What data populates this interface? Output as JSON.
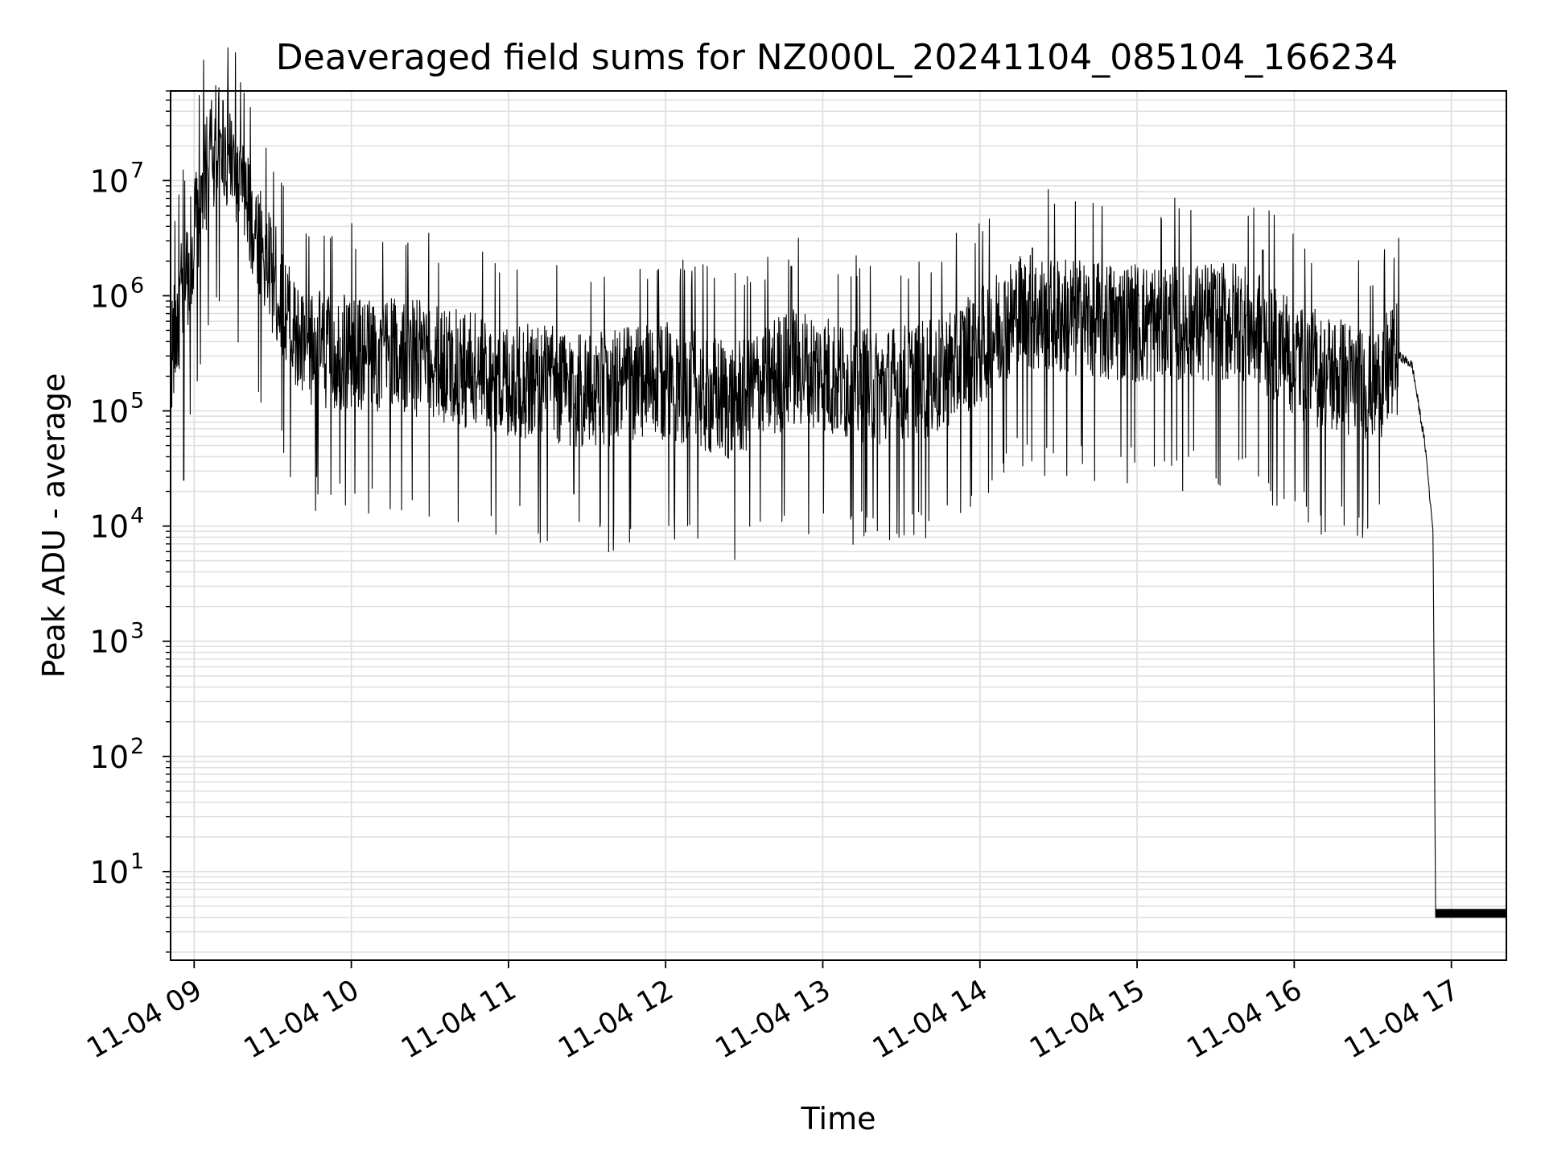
{
  "chart_data": {
    "type": "line",
    "title": "Deaveraged field sums for NZ000L_20241104_085104_166234",
    "xlabel": "Time",
    "ylabel": "Peak ADU - average",
    "y_scale": "log",
    "ylim": [
      1.7,
      60000000
    ],
    "xlim": [
      "11-04 08:51",
      "11-04 17:21"
    ],
    "grid": "major and minor",
    "line_color": "#000000",
    "grid_color": "#e0e0e0",
    "x_ticks": [
      "11-04 09",
      "11-04 10",
      "11-04 11",
      "11-04 12",
      "11-04 13",
      "11-04 14",
      "11-04 15",
      "11-04 16",
      "11-04 17"
    ],
    "y_ticks": [
      {
        "value": 10,
        "base": "10",
        "exp": "1"
      },
      {
        "value": 100,
        "base": "10",
        "exp": "2"
      },
      {
        "value": 1000,
        "base": "10",
        "exp": "3"
      },
      {
        "value": 10000,
        "base": "10",
        "exp": "4"
      },
      {
        "value": 100000,
        "base": "10",
        "exp": "5"
      },
      {
        "value": 1000000,
        "base": "10",
        "exp": "6"
      },
      {
        "value": 10000000,
        "base": "10",
        "exp": "7"
      }
    ],
    "series": [
      {
        "x": [
          "11-04 08:51",
          "11-04 09:05",
          "11-04 09:10",
          "11-04 09:40",
          "11-04 10:20",
          "11-04 10:55",
          "11-04 11:30",
          "11-04 12:00",
          "11-04 12:25",
          "11-04 12:50",
          "11-04 13:20",
          "11-04 13:45",
          "11-04 14:15",
          "11-04 14:45",
          "11-04 15:15",
          "11-04 15:40",
          "11-04 16:05",
          "11-04 16:30",
          "11-04 16:40",
          "11-04 16:45",
          "11-04 16:50",
          "11-04 16:53",
          "11-04 16:54",
          "11-04 17:21"
        ],
        "y": [
          300000,
          13000000,
          26000000,
          350000,
          300000,
          200000,
          150000,
          180000,
          120000,
          250000,
          150000,
          200000,
          700000,
          600000,
          550000,
          600000,
          250000,
          150000,
          300000,
          250000,
          50000,
          9000,
          4,
          4
        ],
        "spikes": [
          {
            "x": "11-04 09:05",
            "y": 13000000
          },
          {
            "x": "11-04 09:10",
            "y": 26000000
          },
          {
            "x": "11-04 08:56",
            "y": 25000
          },
          {
            "x": "11-04 11:25",
            "y": 19000
          },
          {
            "x": "11-04 12:48",
            "y": 1800000
          },
          {
            "x": "11-04 14:20",
            "y": 2600000
          },
          {
            "x": "11-04 15:48",
            "y": 2500000
          }
        ]
      }
    ]
  }
}
